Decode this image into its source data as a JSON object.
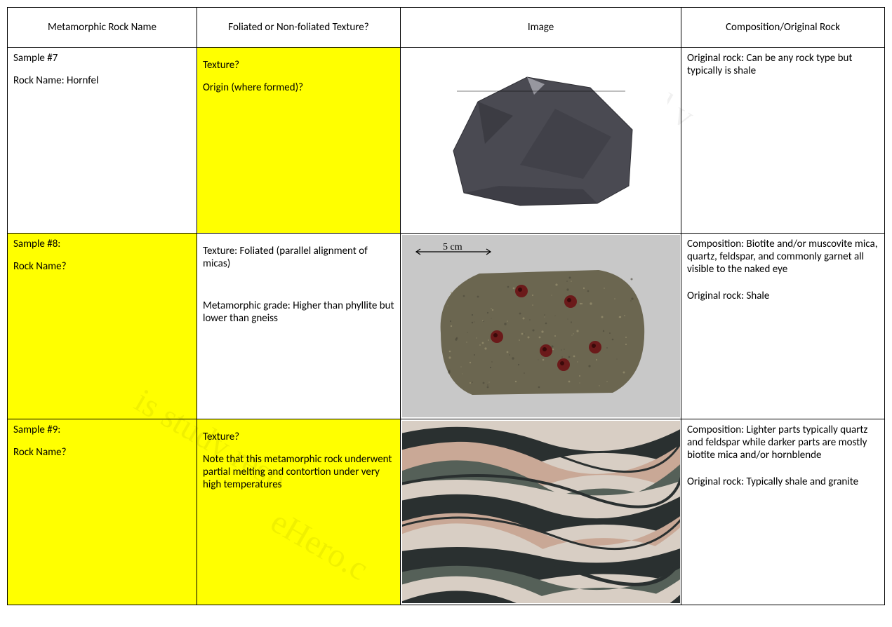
{
  "headers": {
    "col1": "Metamorphic Rock Name",
    "col2": "Foliated or Non-foliated Texture?",
    "col3": "Image",
    "col4": "Composition/Original Rock"
  },
  "rows": [
    {
      "name_cell": {
        "sample": "Sample #7",
        "rock_label": "Rock Name: Hornfel",
        "highlight": false
      },
      "texture_cell": {
        "line1": "Texture?",
        "line2": "Origin (where formed)?",
        "line3": "",
        "highlight": true
      },
      "image": {
        "type": "hornfel",
        "bg": "#ffffff",
        "rock_fill": "#4a4a52",
        "rock_shadow": "#2e2e34",
        "rock_light": "#b8b8c0",
        "scale_label": "",
        "show_scale": false
      },
      "comp_cell": {
        "line1": "Original rock: Can be any rock type  but typically is shale",
        "line2": "",
        "line3": ""
      }
    },
    {
      "name_cell": {
        "sample": "Sample #8:",
        "rock_label": "Rock Name?",
        "highlight": true
      },
      "texture_cell": {
        "line1": "Texture: Foliated (parallel alignment of micas)",
        "line2": "",
        "line3": "Metamorphic grade: Higher than phyllite but lower than gneiss",
        "highlight": false
      },
      "image": {
        "type": "schist",
        "bg": "#c8c8c8",
        "rock_fill": "#6b6650",
        "rock_shadow": "#4a4638",
        "rock_light": "#a09775",
        "garnet": "#6b1a1a",
        "scale_label": "5 cm",
        "show_scale": true
      },
      "comp_cell": {
        "line1": "Composition: Biotite and/or muscovite mica, quartz, feldspar, and  commonly garnet  all visible to the naked eye",
        "line2": "",
        "line3": "Original rock: Shale"
      }
    },
    {
      "name_cell": {
        "sample": "Sample #9:",
        "rock_label": "Rock Name?",
        "highlight": true
      },
      "texture_cell": {
        "line1": "Texture?",
        "line2": "Note that this metamorphic rock underwent partial melting and contortion under very high temperatures",
        "line3": "",
        "highlight": true
      },
      "image": {
        "type": "gneiss",
        "bg": "#ffffff",
        "band_light": "#d8cec4",
        "band_pink": "#c9a896",
        "band_dark": "#2a3030",
        "band_green": "#556058",
        "scale_label": "",
        "show_scale": false
      },
      "comp_cell": {
        "line1": "Composition: Lighter parts typically quartz and feldspar while darker parts are mostly biotite mica and/or hornblende",
        "line2": "",
        "line3": "Original rock: Typically shale and granite"
      }
    }
  ],
  "watermarks": {
    "w1": "is study reso",
    "w2": "eHero.c",
    "w3": "s   d v"
  }
}
